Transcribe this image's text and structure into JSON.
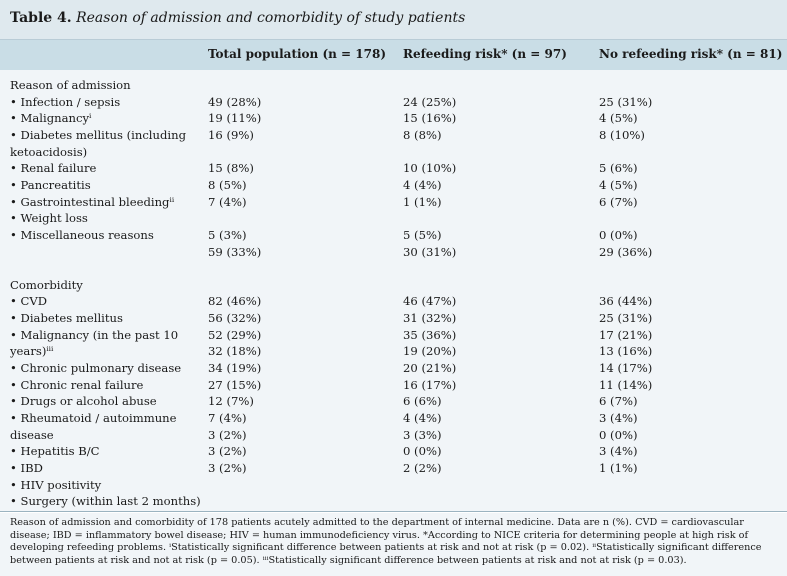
{
  "title": {
    "label": "Table 4.",
    "caption": "Reason of admission and comorbidity of study patients"
  },
  "headers": [
    "Total population (n = 178)",
    "Refeeding risk* (n = 97)",
    "No refeeding risk* (n = 81)"
  ],
  "rows": [
    {
      "label": "Reason of admission",
      "total": "",
      "risk": "",
      "norisk": ""
    },
    {
      "label": "• Infection / sepsis",
      "total": "49 (28%)",
      "risk": "24 (25%)",
      "norisk": "25 (31%)"
    },
    {
      "label": "• Malignancyⁱ",
      "total": "19 (11%)",
      "risk": "15 (16%)",
      "norisk": "4 (5%)"
    },
    {
      "label": "• Diabetes mellitus (including",
      "total": "16 (9%)",
      "risk": "8 (8%)",
      "norisk": "8 (10%)"
    },
    {
      "label": "ketoacidosis)",
      "total": "",
      "risk": "",
      "norisk": ""
    },
    {
      "label": "• Renal failure",
      "total": "15 (8%)",
      "risk": "10 (10%)",
      "norisk": "5 (6%)"
    },
    {
      "label": "• Pancreatitis",
      "total": "8 (5%)",
      "risk": "4 (4%)",
      "norisk": "4 (5%)"
    },
    {
      "label": "• Gastrointestinal bleedingⁱⁱ",
      "total": "7 (4%)",
      "risk": "1 (1%)",
      "norisk": "6 (7%)"
    },
    {
      "label": "• Weight loss",
      "total": "",
      "risk": "",
      "norisk": ""
    },
    {
      "label": "• Miscellaneous reasons",
      "total": "5 (3%)",
      "risk": "5 (5%)",
      "norisk": "0 (0%)"
    },
    {
      "label": "",
      "total": "59 (33%)",
      "risk": "30 (31%)",
      "norisk": "29 (36%)"
    },
    {
      "label": "",
      "total": "",
      "risk": "",
      "norisk": ""
    },
    {
      "label": "Comorbidity",
      "total": "",
      "risk": "",
      "norisk": ""
    },
    {
      "label": "• CVD",
      "total": "82 (46%)",
      "risk": "46 (47%)",
      "norisk": "36 (44%)"
    },
    {
      "label": "• Diabetes mellitus",
      "total": "56 (32%)",
      "risk": "31 (32%)",
      "norisk": "25 (31%)"
    },
    {
      "label": "• Malignancy (in the past 10",
      "total": "52 (29%)",
      "risk": "35 (36%)",
      "norisk": "17 (21%)"
    },
    {
      "label": "years)ⁱⁱⁱ",
      "total": "32 (18%)",
      "risk": "19 (20%)",
      "norisk": "13 (16%)"
    },
    {
      "label": "• Chronic pulmonary disease",
      "total": "34 (19%)",
      "risk": "20 (21%)",
      "norisk": "14 (17%)"
    },
    {
      "label": "• Chronic renal failure",
      "total": "27 (15%)",
      "risk": "16 (17%)",
      "norisk": "11 (14%)"
    },
    {
      "label": "• Drugs or alcohol abuse",
      "total": "12 (7%)",
      "risk": "6 (6%)",
      "norisk": "6 (7%)"
    },
    {
      "label": "• Rheumatoid / autoimmune",
      "total": "7 (4%)",
      "risk": "4 (4%)",
      "norisk": "3 (4%)"
    },
    {
      "label": "disease",
      "total": "3 (2%)",
      "risk": "3 (3%)",
      "norisk": "0 (0%)"
    },
    {
      "label": "• Hepatitis B/C",
      "total": "3 (2%)",
      "risk": "0 (0%)",
      "norisk": "3 (4%)"
    },
    {
      "label": "• IBD",
      "total": "3 (2%)",
      "risk": "2 (2%)",
      "norisk": "1 (1%)"
    },
    {
      "label": "• HIV positivity",
      "total": "",
      "risk": "",
      "norisk": ""
    },
    {
      "label": "• Surgery (within last 2 months)",
      "total": "",
      "risk": "",
      "norisk": ""
    }
  ],
  "footnote": [
    "Reason of admission and comorbidity of 178 patients acutely admitted to the department of internal medicine. Data are n (%). CVD = cardiovascular",
    "disease; IBD = inflammatory bowel disease; HIV = human immunodeficiency virus. *According to NICE criteria for determining people at high risk of",
    "developing refeeding problems. ⁱStatistically significant difference between patients at risk and not at risk (p = 0.02). ⁱⁱStatistically significant difference",
    "between patients at risk and not at risk (p = 0.05). ⁱⁱⁱStatistically significant difference between patients at risk and not at risk (p = 0.03)."
  ]
}
